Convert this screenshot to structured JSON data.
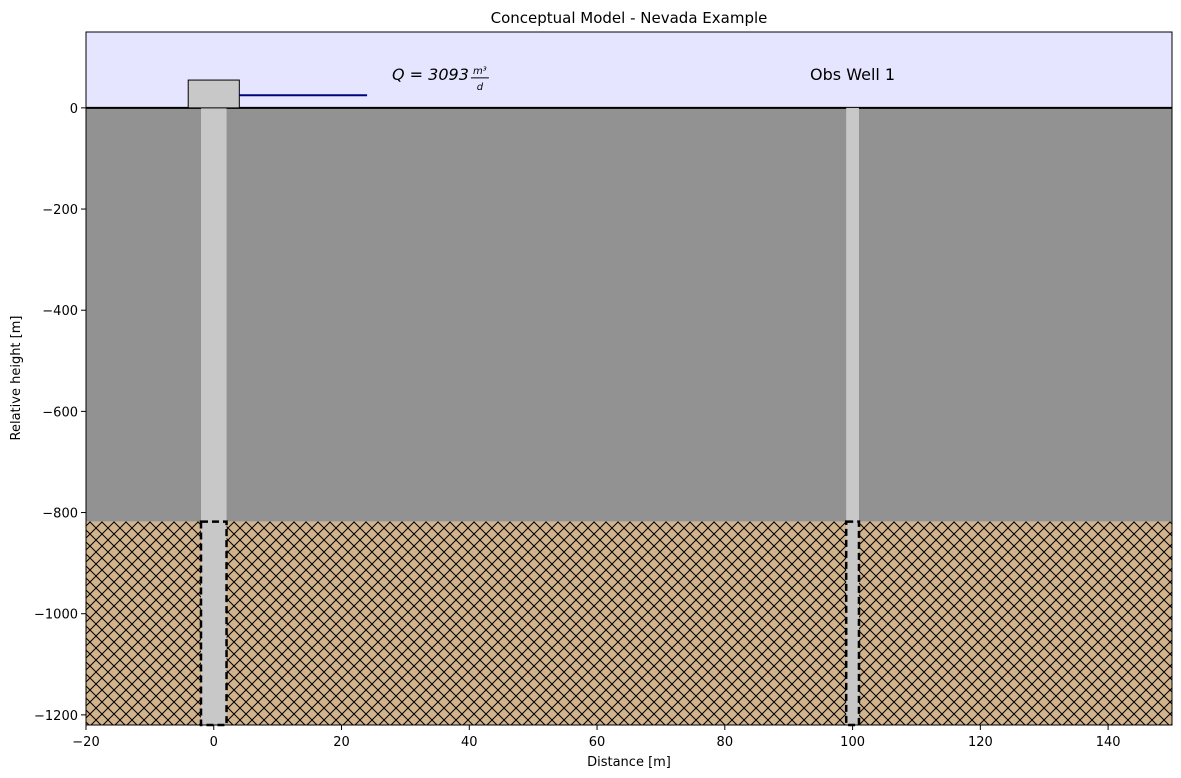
{
  "chart_data": {
    "type": "cross_section",
    "title": "Conceptual Model - Nevada Example",
    "xlabel": "Distance [m]",
    "ylabel": "Relative height [m]",
    "xlim": [
      -20,
      150
    ],
    "ylim": [
      -1220,
      150
    ],
    "xticks": [
      {
        "value": -20,
        "label": "−20"
      },
      0,
      20,
      40,
      60,
      80,
      100,
      120,
      140
    ],
    "yticks": [
      0,
      {
        "value": -200,
        "label": "−200"
      },
      {
        "value": -400,
        "label": "−400"
      },
      {
        "value": -600,
        "label": "−600"
      },
      {
        "value": -800,
        "label": "−800"
      },
      {
        "value": -1000,
        "label": "−1000"
      },
      {
        "value": -1200,
        "label": "−1200"
      }
    ],
    "sky_color": "#e5e5ff",
    "layers": [
      {
        "top": 0,
        "bottom": -818,
        "color": "#929292",
        "hatch": false
      },
      {
        "top": -818,
        "bottom": -1220,
        "color": "#d2b48c",
        "hatch": true
      }
    ],
    "wells": [
      {
        "x0": -2,
        "x1": 2,
        "screen_top": -818,
        "screen_bottom": -1220,
        "color": "#c8c8c8"
      },
      {
        "x0": 99,
        "x1": 101,
        "screen_top": -818,
        "screen_bottom": -1220,
        "color": "#c8c8c8",
        "label": "Obs Well 1"
      }
    ],
    "pump": {
      "x0": -4,
      "x1": 4,
      "top": 55,
      "pipe_y": 25,
      "pipe_x1": 24,
      "pipe_color": "#000080",
      "color": "#c8c8c8"
    },
    "pumping_label": {
      "text": "Q = 3093",
      "numerator": "m³",
      "denominator": "d"
    }
  }
}
